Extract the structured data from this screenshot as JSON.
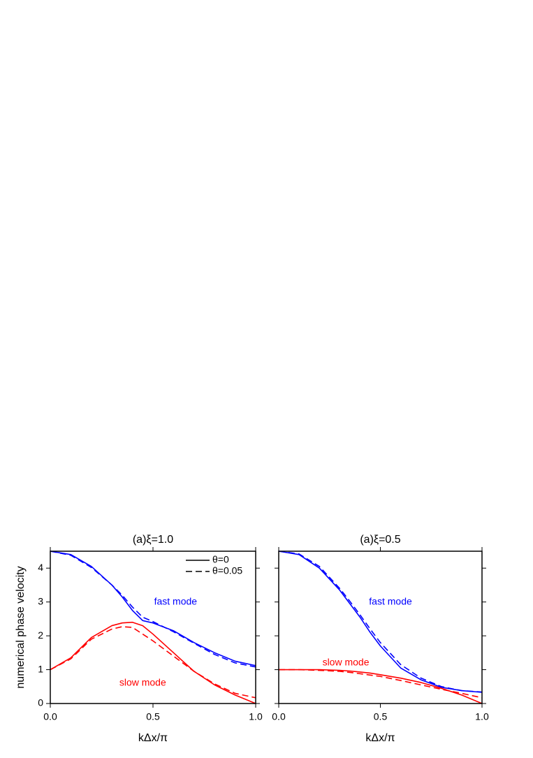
{
  "chart_data": [
    {
      "type": "line",
      "title": "(a)ξ=1.0",
      "xlabel": "kΔx/π",
      "ylabel": "numerical phase velocity",
      "x": [
        0,
        0.1,
        0.2,
        0.3,
        0.35,
        0.4,
        0.45,
        0.5,
        0.6,
        0.7,
        0.8,
        0.9,
        1.0
      ],
      "xlim": [
        0,
        1
      ],
      "ylim": [
        0,
        4.5
      ],
      "xticks": [
        {
          "value": 0,
          "label": "0.0"
        },
        0.5,
        {
          "value": 1,
          "label": "1.0"
        }
      ],
      "yticks": [
        0,
        1,
        2,
        3,
        4
      ],
      "show_ytick_labels": true,
      "legend": [
        {
          "label": "θ=0",
          "dash": false
        },
        {
          "label": "θ=0.05",
          "dash": true
        }
      ],
      "annotations": [
        {
          "text": "fast mode",
          "color": "#0000ff"
        },
        {
          "text": "slow mode",
          "color": "#ff0000"
        }
      ],
      "series": [
        {
          "color": "#0000ff",
          "dash": false,
          "values": [
            4.5,
            4.4,
            4.05,
            3.5,
            3.15,
            2.75,
            2.45,
            2.38,
            2.15,
            1.8,
            1.5,
            1.25,
            1.12
          ]
        },
        {
          "color": "#0000ff",
          "dash": true,
          "values": [
            4.5,
            4.38,
            4.02,
            3.5,
            3.2,
            2.85,
            2.55,
            2.42,
            2.12,
            1.78,
            1.45,
            1.2,
            1.08
          ]
        },
        {
          "color": "#ff0000",
          "dash": false,
          "values": [
            1.0,
            1.35,
            1.95,
            2.3,
            2.38,
            2.4,
            2.3,
            2.05,
            1.5,
            0.95,
            0.55,
            0.25,
            0.0
          ]
        },
        {
          "color": "#ff0000",
          "dash": true,
          "values": [
            1.0,
            1.32,
            1.9,
            2.2,
            2.27,
            2.25,
            2.05,
            1.85,
            1.4,
            0.95,
            0.58,
            0.3,
            0.17
          ]
        }
      ]
    },
    {
      "type": "line",
      "title": "(a)ξ=0.5",
      "xlabel": "kΔx/π",
      "x": [
        0,
        0.1,
        0.2,
        0.3,
        0.35,
        0.4,
        0.45,
        0.5,
        0.6,
        0.7,
        0.8,
        0.9,
        1.0
      ],
      "xlim": [
        0,
        1
      ],
      "ylim": [
        0,
        4.5
      ],
      "xticks": [
        {
          "value": 0,
          "label": "0.0"
        },
        0.5,
        {
          "value": 1,
          "label": "1.0"
        }
      ],
      "yticks": [
        0,
        1,
        2,
        3,
        4
      ],
      "show_ytick_labels": false,
      "annotations": [
        {
          "text": "fast mode",
          "color": "#0000ff"
        },
        {
          "text": "slow mode",
          "color": "#ff0000"
        }
      ],
      "series": [
        {
          "color": "#0000ff",
          "dash": false,
          "values": [
            4.5,
            4.4,
            4.0,
            3.35,
            2.95,
            2.55,
            2.1,
            1.7,
            1.05,
            0.7,
            0.48,
            0.38,
            0.33
          ]
        },
        {
          "color": "#0000ff",
          "dash": true,
          "values": [
            4.5,
            4.42,
            4.05,
            3.4,
            3.02,
            2.62,
            2.2,
            1.8,
            1.15,
            0.75,
            0.5,
            0.38,
            0.34
          ]
        },
        {
          "color": "#ff0000",
          "dash": false,
          "values": [
            1.0,
            1.0,
            1.0,
            0.98,
            0.96,
            0.93,
            0.9,
            0.85,
            0.75,
            0.62,
            0.45,
            0.25,
            0.0
          ]
        },
        {
          "color": "#ff0000",
          "dash": true,
          "values": [
            1.0,
            1.0,
            0.98,
            0.95,
            0.92,
            0.88,
            0.84,
            0.8,
            0.68,
            0.55,
            0.42,
            0.3,
            0.17
          ]
        }
      ]
    }
  ]
}
